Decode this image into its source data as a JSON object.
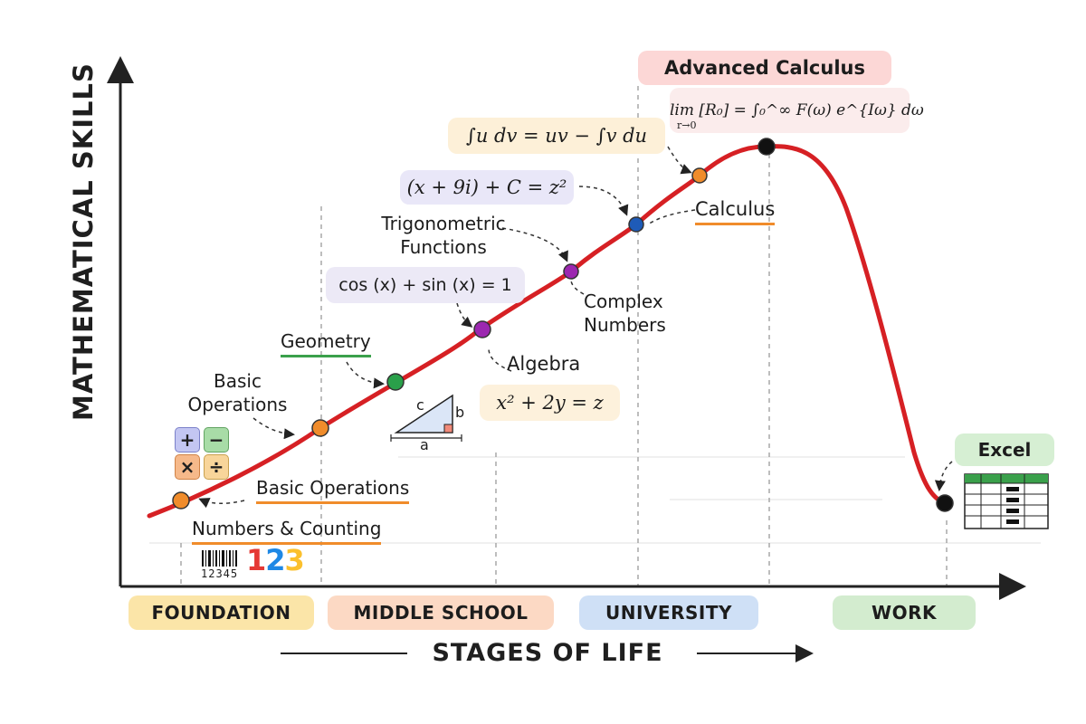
{
  "axes": {
    "y_label": "MATHEMATICAL SKILLS",
    "x_label": "STAGES OF LIFE"
  },
  "stages": [
    "FOUNDATION",
    "MIDDLE SCHOOL",
    "UNIVERSITY",
    "WORK"
  ],
  "milestones": {
    "numbers_counting": "Numbers & Counting",
    "basic_operations_main": "Basic Operations",
    "basic_operations_side": "Basic Operations",
    "geometry": "Geometry",
    "algebra": "Algebra",
    "trigonometric": [
      "Trigonometric",
      "Functions"
    ],
    "complex_numbers": [
      "Complex",
      "Numbers"
    ],
    "calculus": "Calculus",
    "advanced_calculus": "Advanced Calculus",
    "excel": "Excel"
  },
  "formulas": {
    "integration_by_parts": "∫u dv = uv − ∫v du",
    "complex": "(x + 9i) + C = z²",
    "trig": "cos (x) + sin (x) = 1",
    "algebra": "x² + 2y = z",
    "limit": "lim [R₀] = ∫₀^∞ F(ω) e^{Iω} dω",
    "limit_sub": "r→0"
  },
  "icons": {
    "calculator_keys": [
      "+",
      "−",
      "×",
      "÷"
    ],
    "digits": [
      "1",
      "2",
      "3"
    ],
    "barcode_number": "12345",
    "triangle_labels": {
      "hyp": "c",
      "side": "b",
      "base": "a"
    }
  },
  "colors": {
    "curve": "#d62024",
    "dot_orange": "#f08c2b",
    "dot_green": "#2aa04a",
    "dot_purple": "#9c27b0",
    "dot_blue": "#1e5bb8",
    "dot_black": "#111111",
    "underline_orange": "#f08c2b",
    "underline_green": "#3aa04b"
  }
}
